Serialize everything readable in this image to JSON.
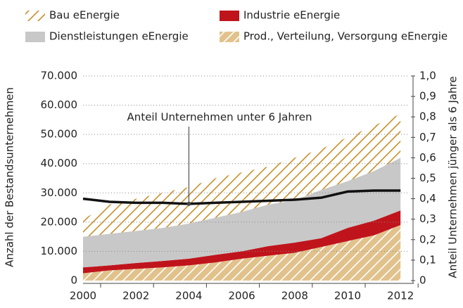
{
  "chart_data": {
    "type": "area",
    "annotation": "Anteil Unternehmen unter 6 Jahren",
    "y_label": "Anzahl der Bestandsunternehmen",
    "y2_label": "Anteil Unternehmen jünger als 6 Jahre",
    "x": [
      2000,
      2001,
      2002,
      2003,
      2004,
      2005,
      2006,
      2007,
      2008,
      2009,
      2010,
      2011,
      2012
    ],
    "xlim": [
      2000,
      2012.5
    ],
    "xticks": [
      2000,
      2002,
      2004,
      2006,
      2008,
      2010,
      2012
    ],
    "ylim": [
      0,
      70000
    ],
    "yticks": [
      0,
      {
        "value": 10000,
        "label": "10.000"
      },
      {
        "value": 20000,
        "label": "20.000"
      },
      {
        "value": 30000,
        "label": "30.000"
      },
      {
        "value": 40000,
        "label": "40.000"
      },
      {
        "value": 50000,
        "label": "50.000"
      },
      {
        "value": 60000,
        "label": "60.000"
      },
      {
        "value": 70000,
        "label": "70.000"
      }
    ],
    "y2lim": [
      0,
      1.0
    ],
    "y2ticks": [
      0,
      {
        "value": 0.1,
        "label": "0,1"
      },
      {
        "value": 0.2,
        "label": "0,2"
      },
      {
        "value": 0.3,
        "label": "0,3"
      },
      {
        "value": 0.4,
        "label": "0,4"
      },
      {
        "value": 0.5,
        "label": "0,5"
      },
      {
        "value": 0.6,
        "label": "0,6"
      },
      {
        "value": 0.7,
        "label": "0,7"
      },
      {
        "value": 0.8,
        "label": "0,8"
      },
      {
        "value": 0.9,
        "label": "0,9"
      },
      {
        "value": 1.0,
        "label": "1,0"
      }
    ],
    "grid": true,
    "series": [
      {
        "name": "Prod., Verteilung, Versorgung eEnergie",
        "color": "#e2c28c",
        "hatch_color": "#ffffff",
        "values": [
          2500,
          3500,
          4000,
          4500,
          5200,
          6200,
          7500,
          8500,
          9500,
          11500,
          13500,
          15500,
          19000
        ]
      },
      {
        "name": "Industrie eEnergie",
        "color": "#c0141c",
        "values": [
          2000,
          1700,
          2000,
          2200,
          2300,
          2600,
          2500,
          3300,
          3500,
          3000,
          4500,
          5000,
          5000
        ]
      },
      {
        "name": "Dienstleistungen eEnergie",
        "color": "#c8c8c8",
        "values": [
          10500,
          10800,
          11000,
          11300,
          12000,
          12700,
          13500,
          14200,
          14500,
          16500,
          16000,
          17000,
          18000
        ]
      },
      {
        "name": "Bau eEnergie",
        "color": "#ffffff",
        "hatch_color": "#c8902a",
        "values": [
          6000,
          10000,
          11000,
          12000,
          12500,
          13500,
          13500,
          13000,
          14500,
          14000,
          15000,
          15500,
          15000
        ]
      },
      {
        "name": "Anteil Unternehmen unter 6 Jahren",
        "type": "line",
        "axis": "y2",
        "color": "#111111",
        "values": [
          0.4,
          0.385,
          0.38,
          0.38,
          0.375,
          0.38,
          0.385,
          0.39,
          0.395,
          0.405,
          0.435,
          0.44,
          0.44
        ]
      }
    ],
    "legend_order": [
      3,
      1,
      2,
      0
    ],
    "annotation_index": 4
  }
}
